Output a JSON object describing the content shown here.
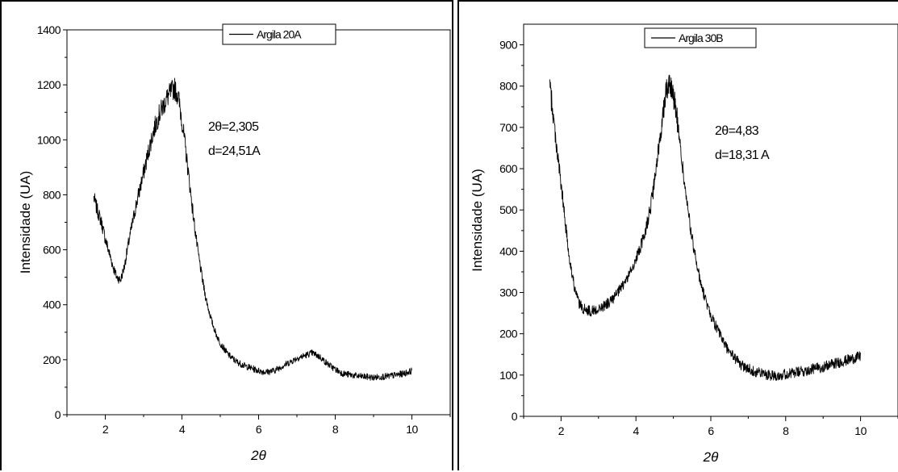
{
  "chart_data": [
    {
      "type": "line",
      "title": "",
      "xlabel": "2θ",
      "ylabel": "Intensidade (UA)",
      "xlim": [
        1.0,
        11.0
      ],
      "ylim": [
        0,
        1400
      ],
      "xticks": [
        2,
        4,
        6,
        8,
        10
      ],
      "yticks": [
        0,
        200,
        400,
        600,
        800,
        1000,
        1200,
        1400
      ],
      "grid": false,
      "legend": "top-center",
      "series": [
        {
          "name": "Argila 20A",
          "x": [
            1.7,
            1.8,
            1.9,
            2.0,
            2.1,
            2.2,
            2.3,
            2.4,
            2.5,
            2.6,
            2.7,
            2.8,
            2.9,
            3.0,
            3.1,
            3.2,
            3.3,
            3.4,
            3.5,
            3.6,
            3.7,
            3.8,
            3.9,
            4.0,
            4.1,
            4.2,
            4.3,
            4.4,
            4.5,
            4.6,
            4.7,
            4.8,
            4.9,
            5.0,
            5.2,
            5.4,
            5.6,
            5.8,
            6.0,
            6.2,
            6.4,
            6.6,
            6.8,
            7.0,
            7.2,
            7.4,
            7.6,
            7.8,
            8.0,
            8.2,
            8.4,
            8.6,
            8.8,
            9.0,
            9.2,
            9.4,
            9.6,
            9.8,
            10.0
          ],
          "y": [
            790,
            740,
            700,
            640,
            590,
            540,
            500,
            490,
            540,
            620,
            690,
            760,
            820,
            880,
            940,
            1000,
            1050,
            1090,
            1120,
            1150,
            1170,
            1190,
            1160,
            1070,
            960,
            840,
            720,
            610,
            520,
            440,
            380,
            330,
            290,
            260,
            220,
            195,
            180,
            170,
            160,
            155,
            160,
            175,
            190,
            205,
            215,
            225,
            210,
            185,
            165,
            150,
            145,
            140,
            138,
            135,
            138,
            140,
            145,
            150,
            160
          ]
        }
      ],
      "annotations": [
        "2θ=2,305",
        "d=24,51A"
      ]
    },
    {
      "type": "line",
      "title": "",
      "xlabel": "2θ",
      "ylabel": "Intensidade (UA)",
      "xlim": [
        1.0,
        11.0
      ],
      "ylim": [
        0,
        950
      ],
      "xticks": [
        2,
        4,
        6,
        8,
        10
      ],
      "yticks": [
        0,
        100,
        200,
        300,
        400,
        500,
        600,
        700,
        800,
        900
      ],
      "grid": false,
      "legend": "top-center",
      "series": [
        {
          "name": "Argila 30B",
          "x": [
            1.7,
            1.8,
            1.9,
            2.0,
            2.1,
            2.2,
            2.3,
            2.4,
            2.5,
            2.6,
            2.8,
            3.0,
            3.2,
            3.4,
            3.6,
            3.8,
            4.0,
            4.2,
            4.4,
            4.5,
            4.6,
            4.7,
            4.8,
            4.9,
            5.0,
            5.1,
            5.2,
            5.3,
            5.4,
            5.5,
            5.6,
            5.7,
            5.8,
            5.9,
            6.0,
            6.2,
            6.4,
            6.6,
            6.8,
            7.0,
            7.2,
            7.4,
            7.6,
            7.8,
            8.0,
            8.2,
            8.4,
            8.6,
            8.8,
            9.0,
            9.2,
            9.4,
            9.6,
            9.8,
            10.0
          ],
          "y": [
            800,
            720,
            640,
            560,
            480,
            400,
            340,
            295,
            270,
            260,
            255,
            260,
            270,
            285,
            310,
            340,
            380,
            430,
            510,
            570,
            640,
            720,
            790,
            810,
            780,
            720,
            640,
            560,
            490,
            430,
            380,
            335,
            300,
            270,
            245,
            205,
            170,
            145,
            125,
            115,
            108,
            103,
            100,
            100,
            102,
            105,
            108,
            112,
            116,
            120,
            125,
            130,
            135,
            140,
            145
          ]
        }
      ],
      "annotations": [
        "2θ=4,83",
        "d=18,31 A"
      ]
    }
  ]
}
